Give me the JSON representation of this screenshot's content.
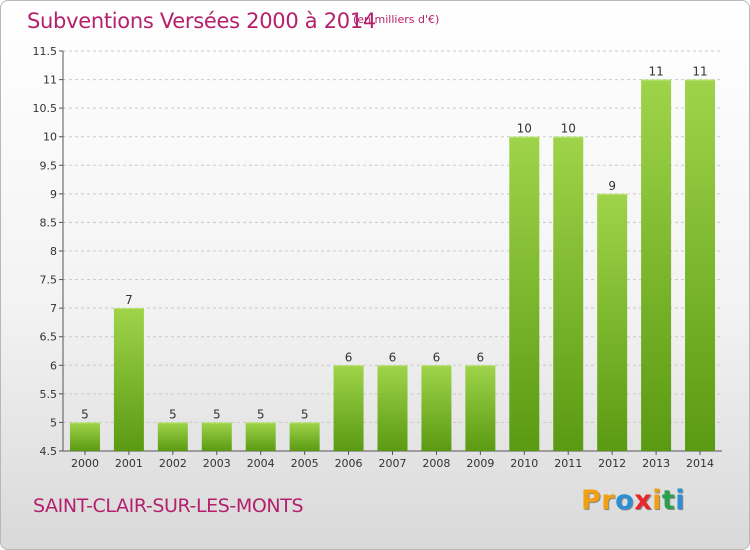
{
  "header": {
    "title": "Subventions Versées 2000 à 2014",
    "unit": "(en milliers d'€)"
  },
  "footer": {
    "commune": "SAINT-CLAIR-SUR-LES-MONTS",
    "logo_letters": [
      "P",
      "r",
      "o",
      "x",
      "i",
      "t",
      "i"
    ],
    "logo_colors": [
      "#f0a012",
      "#f0a012",
      "#2d8fd5",
      "#e8262a",
      "#f0a012",
      "#2aa04a",
      "#2d8fd5"
    ]
  },
  "colors": {
    "bar_light": "#9fd44a",
    "bar_dark": "#5a9a12",
    "title": "#b5206c"
  },
  "chart_data": {
    "type": "bar",
    "categories": [
      "2000",
      "2001",
      "2002",
      "2003",
      "2004",
      "2005",
      "2006",
      "2007",
      "2008",
      "2009",
      "2010",
      "2011",
      "2012",
      "2013",
      "2014"
    ],
    "values": [
      5,
      7,
      5,
      5,
      5,
      5,
      6,
      6,
      6,
      6,
      10,
      10,
      9,
      11,
      11
    ],
    "ylim": [
      4.5,
      11.5
    ],
    "yticks": [
      "4.5",
      "5",
      "5.5",
      "6",
      "6.5",
      "7",
      "7.5",
      "8",
      "8.5",
      "9",
      "9.5",
      "10",
      "10.5",
      "11",
      "11.5"
    ],
    "grid": true
  }
}
